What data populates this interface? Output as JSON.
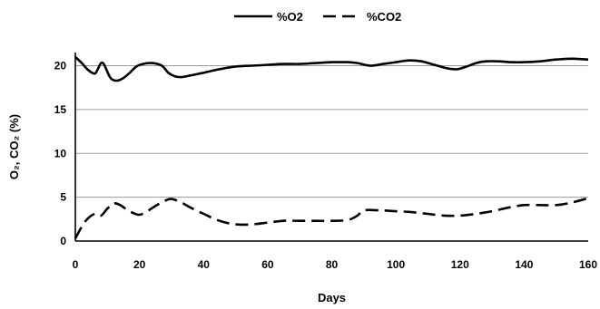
{
  "chart_data": {
    "type": "line",
    "xlabel": "Days",
    "ylabel": "O₂, CO₂ (%)",
    "xlim": [
      0,
      160
    ],
    "ylim": [
      0,
      20
    ],
    "xticks": [
      0,
      20,
      40,
      60,
      80,
      100,
      120,
      140,
      160
    ],
    "yticks": [
      0,
      5,
      10,
      15,
      20
    ],
    "grid": "horizontal",
    "legend_position": "top-center",
    "series": [
      {
        "name": "%O2",
        "line_style": "solid",
        "color": "#000000",
        "points": [
          [
            0,
            21.0
          ],
          [
            2,
            20.3
          ],
          [
            4,
            19.5
          ],
          [
            6,
            19.1
          ],
          [
            7,
            19.6
          ],
          [
            8,
            20.3
          ],
          [
            9,
            20.1
          ],
          [
            11,
            18.6
          ],
          [
            13,
            18.3
          ],
          [
            15,
            18.6
          ],
          [
            17,
            19.2
          ],
          [
            19,
            19.9
          ],
          [
            21,
            20.2
          ],
          [
            24,
            20.3
          ],
          [
            27,
            20.0
          ],
          [
            29,
            19.2
          ],
          [
            31,
            18.8
          ],
          [
            33,
            18.7
          ],
          [
            36,
            18.9
          ],
          [
            40,
            19.2
          ],
          [
            45,
            19.6
          ],
          [
            50,
            19.9
          ],
          [
            55,
            20.0
          ],
          [
            60,
            20.1
          ],
          [
            65,
            20.2
          ],
          [
            70,
            20.2
          ],
          [
            75,
            20.3
          ],
          [
            80,
            20.4
          ],
          [
            85,
            20.4
          ],
          [
            88,
            20.3
          ],
          [
            92,
            20.0
          ],
          [
            96,
            20.2
          ],
          [
            100,
            20.4
          ],
          [
            104,
            20.6
          ],
          [
            108,
            20.5
          ],
          [
            112,
            20.1
          ],
          [
            116,
            19.7
          ],
          [
            119,
            19.6
          ],
          [
            122,
            19.9
          ],
          [
            125,
            20.3
          ],
          [
            128,
            20.5
          ],
          [
            132,
            20.5
          ],
          [
            136,
            20.4
          ],
          [
            140,
            20.4
          ],
          [
            145,
            20.5
          ],
          [
            150,
            20.7
          ],
          [
            155,
            20.8
          ],
          [
            160,
            20.7
          ]
        ]
      },
      {
        "name": "%CO2",
        "line_style": "dashed",
        "color": "#000000",
        "points": [
          [
            0,
            0.3
          ],
          [
            3,
            2.2
          ],
          [
            6,
            3.1
          ],
          [
            8,
            2.9
          ],
          [
            10,
            3.7
          ],
          [
            12,
            4.3
          ],
          [
            14,
            4.1
          ],
          [
            16,
            3.6
          ],
          [
            18,
            3.2
          ],
          [
            20,
            3.0
          ],
          [
            22,
            3.3
          ],
          [
            25,
            4.0
          ],
          [
            28,
            4.6
          ],
          [
            30,
            4.8
          ],
          [
            33,
            4.4
          ],
          [
            36,
            3.8
          ],
          [
            40,
            3.1
          ],
          [
            45,
            2.3
          ],
          [
            50,
            1.9
          ],
          [
            55,
            1.9
          ],
          [
            60,
            2.1
          ],
          [
            65,
            2.3
          ],
          [
            70,
            2.3
          ],
          [
            75,
            2.3
          ],
          [
            80,
            2.3
          ],
          [
            85,
            2.4
          ],
          [
            88,
            2.9
          ],
          [
            90,
            3.5
          ],
          [
            95,
            3.5
          ],
          [
            100,
            3.4
          ],
          [
            105,
            3.3
          ],
          [
            110,
            3.1
          ],
          [
            115,
            2.9
          ],
          [
            120,
            2.9
          ],
          [
            125,
            3.1
          ],
          [
            130,
            3.4
          ],
          [
            135,
            3.8
          ],
          [
            140,
            4.1
          ],
          [
            145,
            4.1
          ],
          [
            150,
            4.1
          ],
          [
            155,
            4.4
          ],
          [
            160,
            4.9
          ]
        ]
      }
    ]
  }
}
